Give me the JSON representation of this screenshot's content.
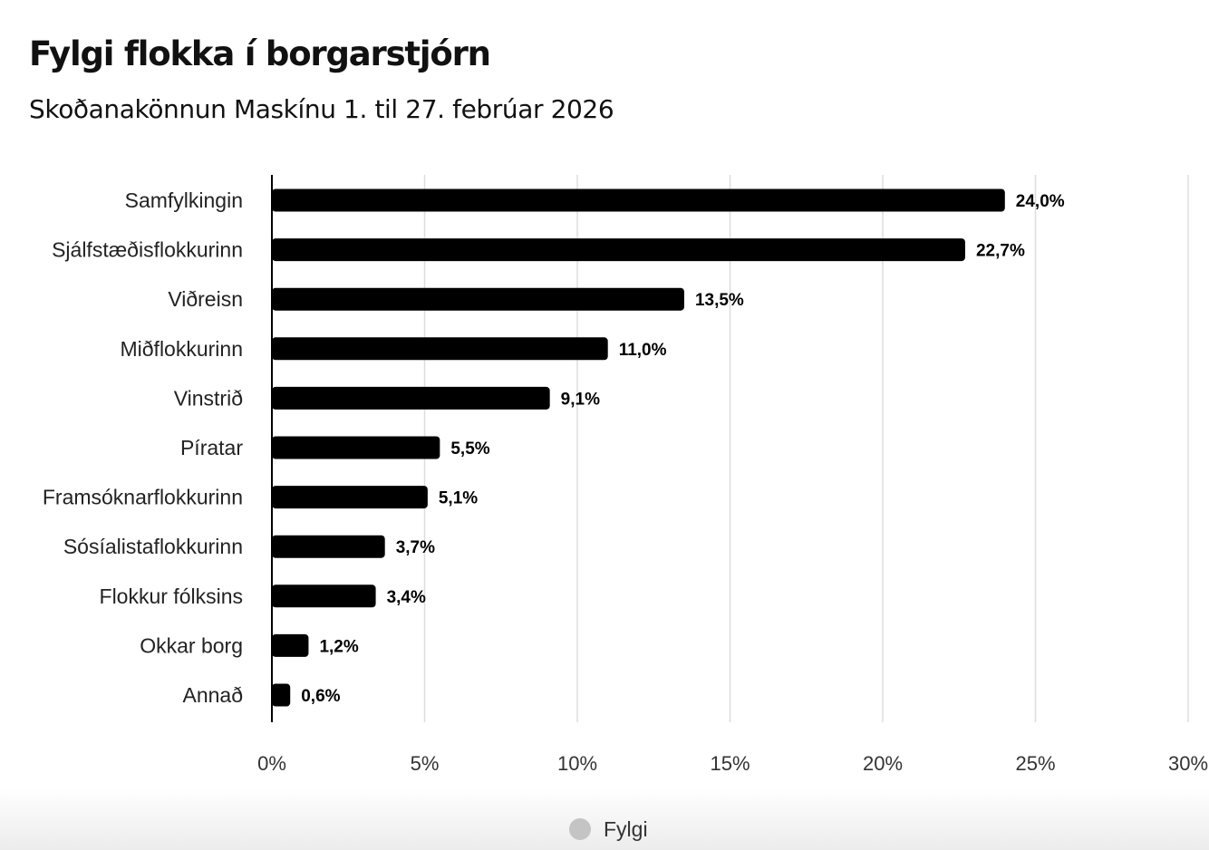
{
  "chart_data": {
    "type": "bar",
    "orientation": "horizontal",
    "title": "Fylgi flokka í borgarstjórn",
    "subtitle": "Skoðanakönnun Maskínu 1. til 27. febrúar 2026",
    "categories": [
      "Samfylkingin",
      "Sjálfstæðisflokkurinn",
      "Viðreisn",
      "Miðflokkurinn",
      "Vinstrið",
      "Píratar",
      "Framsóknarflokkurinn",
      "Sósíalistaflokkurinn",
      "Flokkur fólksins",
      "Okkar borg",
      "Annað"
    ],
    "series": [
      {
        "name": "Fylgi",
        "values": [
          24.0,
          22.7,
          13.5,
          11.0,
          9.1,
          5.5,
          5.1,
          3.7,
          3.4,
          1.2,
          0.6
        ],
        "labels": [
          "24,0%",
          "22,7%",
          "13,5%",
          "11,0%",
          "9,1%",
          "5,5%",
          "5,1%",
          "3,7%",
          "3,4%",
          "1,2%",
          "0,6%"
        ],
        "color": "#000000"
      }
    ],
    "xlim": [
      0,
      30
    ],
    "xticks": [
      0,
      5,
      10,
      15,
      20,
      25,
      30
    ],
    "xtick_labels": [
      "0%",
      "5%",
      "10%",
      "15%",
      "20%",
      "25%",
      "30%"
    ],
    "grid": "vertical",
    "legend": "bottom-center",
    "legend_color": "#c4c4c4"
  }
}
